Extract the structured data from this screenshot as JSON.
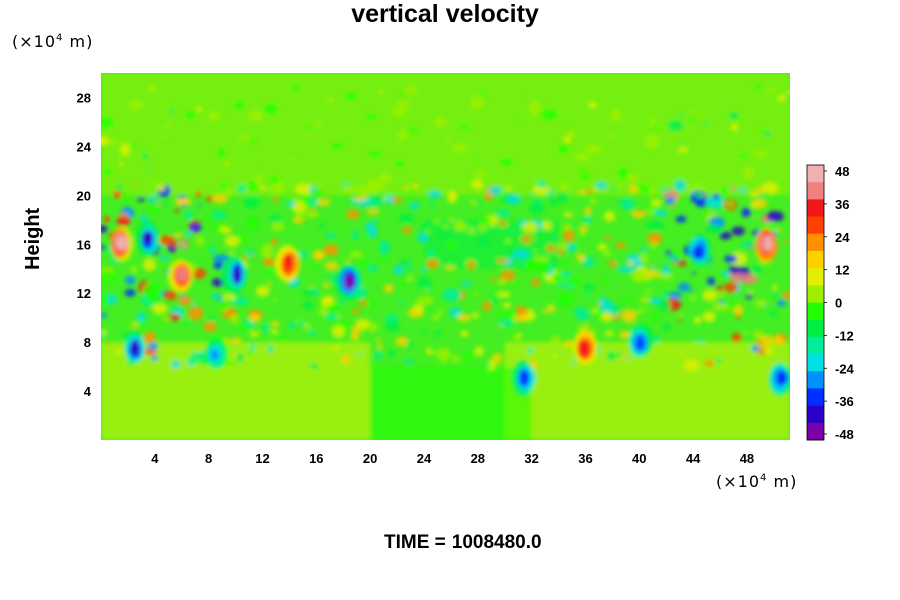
{
  "chart_data": {
    "type": "heatmap",
    "title": "vertical velocity",
    "xlabel": "",
    "ylabel": "Height",
    "x_unit_label": "(×10",
    "x_unit_power": "4",
    "x_unit_suffix": " m)",
    "y_unit_label": "(×10",
    "y_unit_power": "4",
    "y_unit_suffix": " m)",
    "xlim": [
      0,
      51.2
    ],
    "ylim": [
      0,
      30
    ],
    "x_ticks": [
      "4",
      "8",
      "12",
      "16",
      "20",
      "24",
      "28",
      "32",
      "36",
      "40",
      "44",
      "48"
    ],
    "y_ticks": [
      "4",
      "8",
      "12",
      "16",
      "20",
      "24",
      "28"
    ],
    "colorbar": {
      "range": [
        -48,
        48
      ],
      "tick_labels": [
        "48",
        "36",
        "24",
        "12",
        "0",
        "-12",
        "-24",
        "-36",
        "-48"
      ],
      "colors": [
        "#7a00a8",
        "#2b00c8",
        "#0030ff",
        "#0090ff",
        "#00e0e0",
        "#00ee99",
        "#00ee44",
        "#22ff00",
        "#9cf000",
        "#e0f000",
        "#ffd000",
        "#ff9000",
        "#ff4000",
        "#f01818",
        "#f08080",
        "#f0b0b0"
      ]
    },
    "features": [
      {
        "x": 1.5,
        "y": 16,
        "value": 48
      },
      {
        "x": 3.5,
        "y": 16.5,
        "value": -40
      },
      {
        "x": 6,
        "y": 13.5,
        "value": 36
      },
      {
        "x": 10,
        "y": 13.5,
        "value": -40
      },
      {
        "x": 14,
        "y": 14.5,
        "value": 30
      },
      {
        "x": 18.5,
        "y": 13,
        "value": -44
      },
      {
        "x": 2.5,
        "y": 7.5,
        "value": -38
      },
      {
        "x": 8.5,
        "y": 7,
        "value": -30
      },
      {
        "x": 31.5,
        "y": 5,
        "value": -36
      },
      {
        "x": 36,
        "y": 7.5,
        "value": 34
      },
      {
        "x": 40,
        "y": 8,
        "value": -34
      },
      {
        "x": 44.5,
        "y": 15.5,
        "value": -36
      },
      {
        "x": 49.5,
        "y": 16,
        "value": 48
      },
      {
        "x": 50.5,
        "y": 5,
        "value": -36
      }
    ]
  },
  "footer": {
    "time_label": "TIME =",
    "time_value": "1008480.0"
  }
}
